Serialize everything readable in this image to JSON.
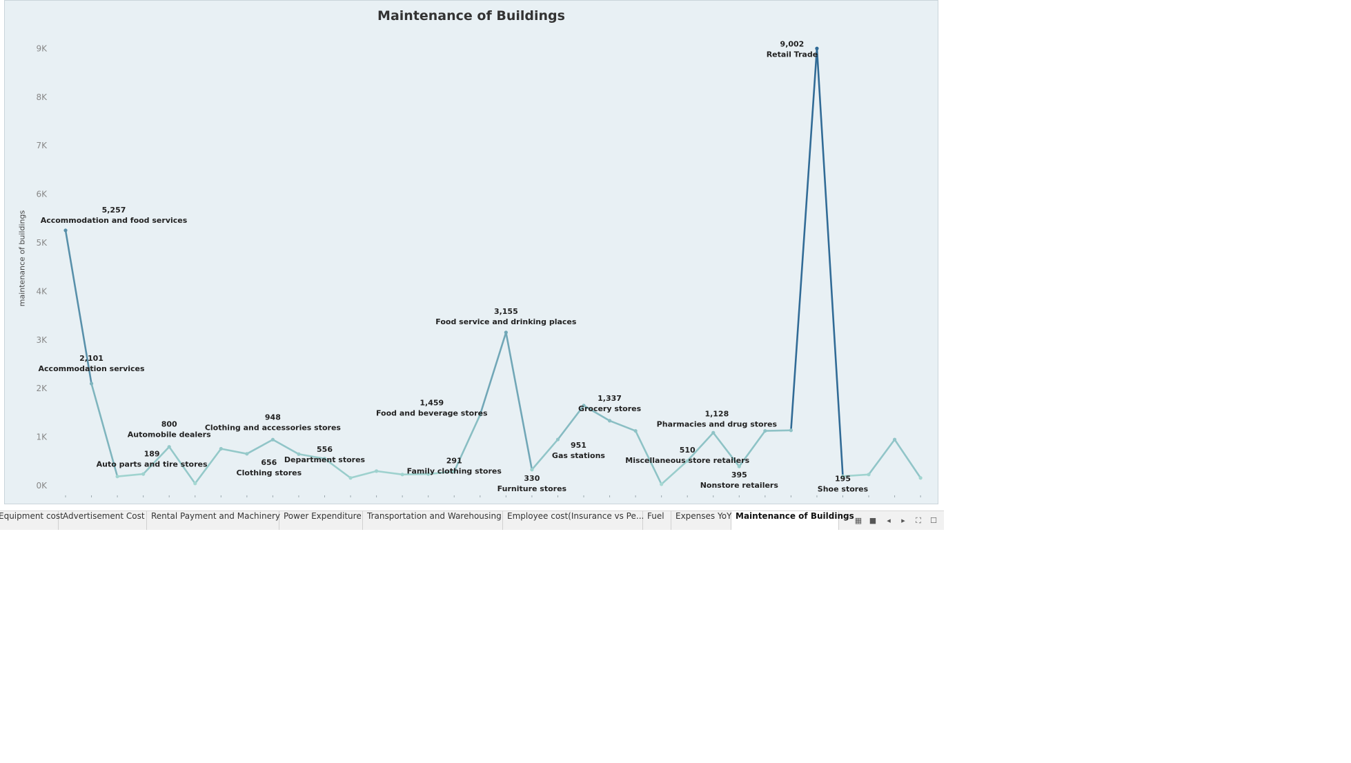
{
  "chart_data": {
    "type": "line",
    "title": "Maintenance of Buildings",
    "ylabel": "maintenance of buildings",
    "xlabel": "",
    "ylim": [
      0,
      9500
    ],
    "yticks": [
      0,
      1000,
      2000,
      3000,
      4000,
      5000,
      6000,
      7000,
      8000,
      9000
    ],
    "ytick_labels": [
      "0K",
      "1K",
      "2K",
      "3K",
      "4K",
      "5K",
      "6K",
      "7K",
      "8K",
      "9K"
    ],
    "grid": false,
    "values": [
      5257,
      2101,
      189,
      240,
      800,
      45,
      760,
      656,
      948,
      650,
      556,
      160,
      300,
      230,
      240,
      291,
      1459,
      3155,
      330,
      951,
      1650,
      1337,
      1128,
      30,
      510,
      1090,
      395,
      1128,
      1140,
      9002,
      195,
      230,
      950,
      160
    ],
    "labeled_points": [
      {
        "index": 0,
        "value": "5,257",
        "category": "Accommodation and food services"
      },
      {
        "index": 1,
        "value": "2,101",
        "category": "Accommodation services"
      },
      {
        "index": 2,
        "value": "189",
        "category": "Auto parts and tire stores"
      },
      {
        "index": 4,
        "value": "800",
        "category": "Automobile dealers"
      },
      {
        "index": 7,
        "value": "656",
        "category": "Clothing stores"
      },
      {
        "index": 8,
        "value": "948",
        "category": "Clothing and accessories stores"
      },
      {
        "index": 10,
        "value": "556",
        "category": "Department stores"
      },
      {
        "index": 15,
        "value": "291",
        "category": "Family clothing stores"
      },
      {
        "index": 16,
        "value": "1,459",
        "category": "Food and beverage stores"
      },
      {
        "index": 17,
        "value": "3,155",
        "category": "Food service and drinking places"
      },
      {
        "index": 18,
        "value": "330",
        "category": "Furniture stores"
      },
      {
        "index": 19,
        "value": "951",
        "category": "Gas stations"
      },
      {
        "index": 21,
        "value": "1,337",
        "category": "Grocery stores"
      },
      {
        "index": 24,
        "value": "510",
        "category": "Miscellaneous store retailers"
      },
      {
        "index": 26,
        "value": "395",
        "category": "Nonstore retailers"
      },
      {
        "index": 27,
        "value": "1,128",
        "category": "Pharmacies and drug stores"
      },
      {
        "index": 29,
        "value": "9,002",
        "category": "Retail Trade"
      },
      {
        "index": 30,
        "value": "195",
        "category": "Shoe stores"
      }
    ],
    "colors": {
      "low": "#a7dad3",
      "high": "#2c6693"
    }
  },
  "tabs": [
    {
      "label": "Equipment cost",
      "active": false
    },
    {
      "label": "Advertisement Cost",
      "active": false
    },
    {
      "label": "Rental Payment and Machinery",
      "active": false
    },
    {
      "label": "Power Expenditure",
      "active": false
    },
    {
      "label": "Transportation and Warehousing",
      "active": false
    },
    {
      "label": "Employee cost(Insurance vs Pe...",
      "active": false
    },
    {
      "label": "Fuel",
      "active": false
    },
    {
      "label": "Expenses YoY",
      "active": false
    },
    {
      "label": "Maintenance of Buildings",
      "active": true
    }
  ],
  "toolbar_icons": [
    "sheet-sorter-icon",
    "filmstrip-icon",
    "previous-icon",
    "next-icon",
    "fullscreen-icon",
    "presentation-icon"
  ]
}
